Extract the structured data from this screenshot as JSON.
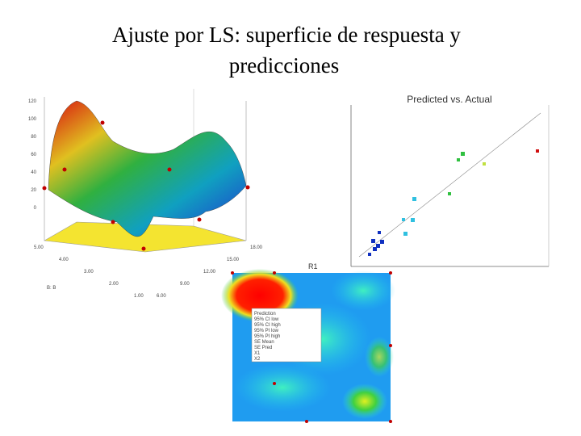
{
  "title": "Ajuste por LS: superficie de respuesta y predicciones",
  "surface_plot": {
    "z_ticks": [
      "120",
      "100",
      "80",
      "60",
      "40",
      "20",
      "0"
    ],
    "b_ticks": [
      "5.00",
      "4.00",
      "3.00",
      "2.00",
      "1.00"
    ],
    "b_label": "B: B",
    "a_ticks": [
      "18.00",
      "15.00",
      "12.00",
      "9.00",
      "6.00"
    ]
  },
  "scatter_plot": {
    "title": "Predicted vs. Actual"
  },
  "contour_plot": {
    "title": "R1",
    "tooltip": [
      "Prediction",
      "95% CI low",
      "95% CI high",
      "95% PI low",
      "95% PI high",
      "SE Mean",
      "SE Pred",
      "X1",
      "X2"
    ]
  }
}
